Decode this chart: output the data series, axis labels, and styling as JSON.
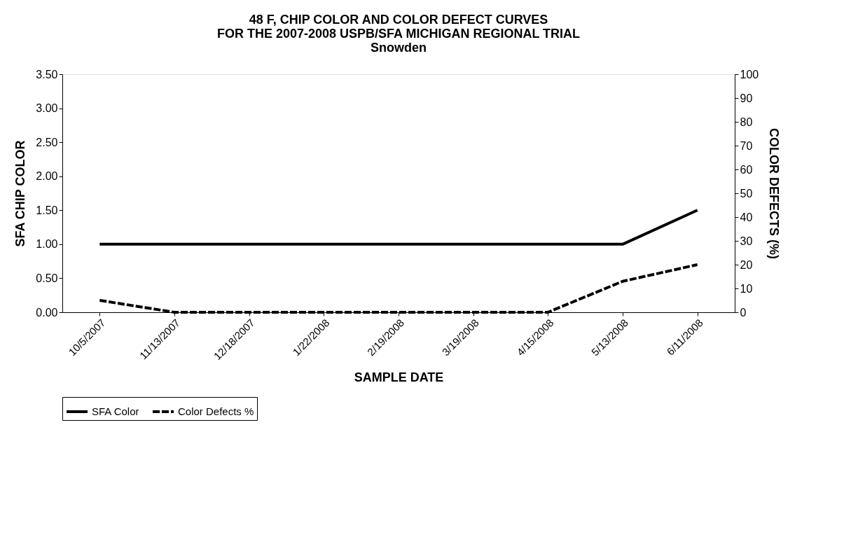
{
  "chart_data": {
    "type": "line",
    "title": "48 F, CHIP COLOR AND COLOR DEFECT CURVES\nFOR THE 2007-2008 USPB/SFA MICHIGAN REGIONAL TRIAL\nSnowden",
    "xlabel": "SAMPLE DATE",
    "ylabel": "SFA CHIP COLOR",
    "y2label": "COLOR DEFECTS (%)",
    "categories": [
      "10/5/2007",
      "11/13/2007",
      "12/18/2007",
      "1/22/2008",
      "2/19/2008",
      "3/19/2008",
      "4/15/2008",
      "5/13/2008",
      "6/11/2008"
    ],
    "series": [
      {
        "name": "SFA Color",
        "color": "#000000",
        "line_style": "solid",
        "values": [
          1.0,
          1.0,
          1.0,
          1.0,
          1.0,
          1.0,
          1.0,
          1.0,
          1.5
        ]
      },
      {
        "name": "Color Defects %",
        "color": "#000000",
        "line_style": "dashed",
        "axis": "y2",
        "values": [
          5,
          0,
          0,
          0,
          0,
          0,
          0,
          13,
          20
        ]
      }
    ],
    "ylim": [
      0,
      3.5
    ],
    "yticks": [
      {
        "value": 0,
        "label": "0.00"
      },
      {
        "value": 0.5,
        "label": "0.50"
      },
      {
        "value": 1,
        "label": "1.00"
      },
      {
        "value": 1.5,
        "label": "1.50"
      },
      {
        "value": 2,
        "label": "2.00"
      },
      {
        "value": 2.5,
        "label": "2.50"
      },
      {
        "value": 3,
        "label": "3.00"
      },
      {
        "value": 3.5,
        "label": "3.50"
      }
    ],
    "y2lim": [
      0,
      100
    ],
    "y2ticks": [
      0,
      10,
      20,
      30,
      40,
      50,
      60,
      70,
      80,
      90,
      100
    ],
    "grid": false,
    "legend": "bottom",
    "marker": "none"
  }
}
